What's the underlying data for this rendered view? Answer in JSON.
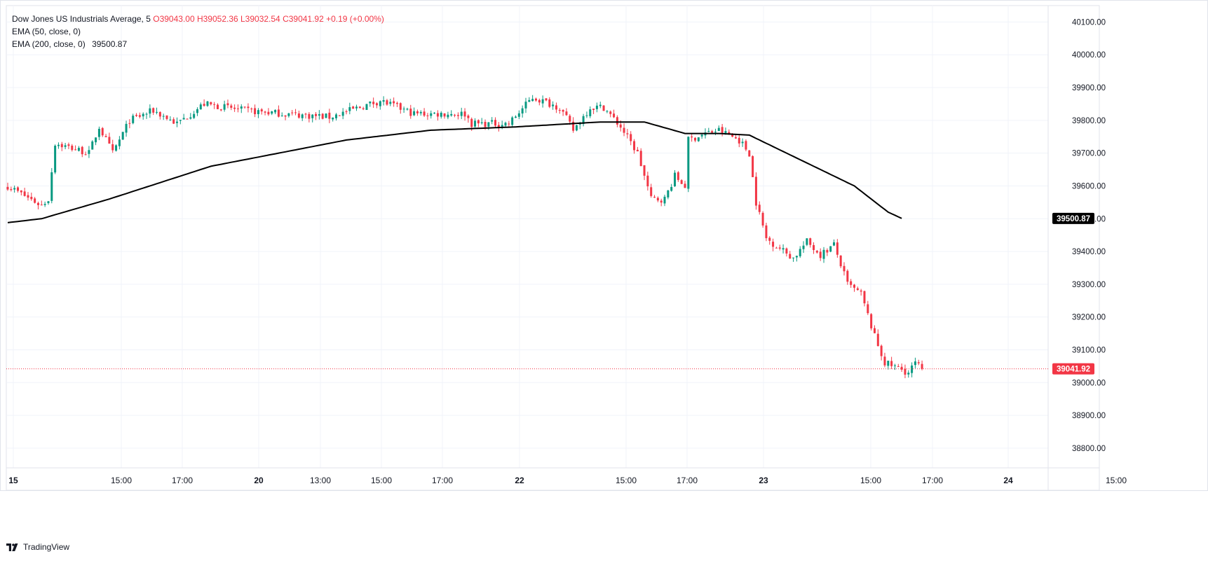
{
  "header": {
    "symbol": "Dow Jones US Industrials Average, 5",
    "ohlc": "O39043.00 H39052.36 L39032.54 C39041.92 +0.19 (+0.00%)",
    "ema50_label": "EMA (50, close, 0)",
    "ema200_label": "EMA (200, close, 0)",
    "ema200_value": "39500.87"
  },
  "brand": {
    "name": "TradingView",
    "icon": "tradingview-logo-icon"
  },
  "colors": {
    "up": "#089981",
    "down": "#f23645",
    "ema": "#000000",
    "grid": "#f0f3fa",
    "price_tag": "#f23645",
    "ema_tag": "#000000",
    "text": "#131722"
  },
  "chart_data": {
    "type": "candlestick",
    "timeframe": "5",
    "y_axis": {
      "ticks": [
        "40100.00",
        "40000.00",
        "39900.00",
        "39800.00",
        "39700.00",
        "39600.00",
        "39500.00",
        "39400.00",
        "39300.00",
        "39200.00",
        "39100.00",
        "39000.00",
        "38900.00",
        "38800.00"
      ],
      "range": [
        38740,
        40150
      ]
    },
    "x_axis": {
      "ticks": [
        "15",
        "15:00",
        "17:00",
        "20",
        "13:00",
        "15:00",
        "17:00",
        "22",
        "15:00",
        "17:00",
        "23",
        "15:00",
        "17:00",
        "24",
        "15:00"
      ],
      "bold_ticks": [
        "15",
        "20",
        "22",
        "23",
        "24"
      ]
    },
    "last_price": {
      "value": 39041.92,
      "label": "39041.92"
    },
    "ema200_last": {
      "value": 39500.87,
      "label": "39500.87"
    },
    "path_waypoints": [
      {
        "bar": 0,
        "price": 39600
      },
      {
        "bar": 10,
        "price": 39540
      },
      {
        "bar": 12,
        "price": 39560
      },
      {
        "bar": 14,
        "price": 39730
      },
      {
        "bar": 24,
        "price": 39700
      },
      {
        "bar": 27,
        "price": 39780
      },
      {
        "bar": 31,
        "price": 39700
      },
      {
        "bar": 36,
        "price": 39800
      },
      {
        "bar": 43,
        "price": 39830
      },
      {
        "bar": 50,
        "price": 39790
      },
      {
        "bar": 58,
        "price": 39850
      },
      {
        "bar": 70,
        "price": 39830
      },
      {
        "bar": 82,
        "price": 39820
      },
      {
        "bar": 95,
        "price": 39810
      },
      {
        "bar": 110,
        "price": 39860
      },
      {
        "bar": 120,
        "price": 39820
      },
      {
        "bar": 135,
        "price": 39820
      },
      {
        "bar": 137,
        "price": 39790
      },
      {
        "bar": 148,
        "price": 39790
      },
      {
        "bar": 155,
        "price": 39870
      },
      {
        "bar": 163,
        "price": 39840
      },
      {
        "bar": 167,
        "price": 39770
      },
      {
        "bar": 172,
        "price": 39840
      },
      {
        "bar": 176,
        "price": 39840
      },
      {
        "bar": 181,
        "price": 39780
      },
      {
        "bar": 186,
        "price": 39700
      },
      {
        "bar": 190,
        "price": 39560
      },
      {
        "bar": 194,
        "price": 39560
      },
      {
        "bar": 197,
        "price": 39630
      },
      {
        "bar": 200,
        "price": 39600
      },
      {
        "bar": 201,
        "price": 39740
      },
      {
        "bar": 206,
        "price": 39760
      },
      {
        "bar": 210,
        "price": 39770
      },
      {
        "bar": 216,
        "price": 39740
      },
      {
        "bar": 219,
        "price": 39700
      },
      {
        "bar": 221,
        "price": 39550
      },
      {
        "bar": 224,
        "price": 39440
      },
      {
        "bar": 232,
        "price": 39380
      },
      {
        "bar": 236,
        "price": 39430
      },
      {
        "bar": 240,
        "price": 39390
      },
      {
        "bar": 244,
        "price": 39420
      },
      {
        "bar": 248,
        "price": 39300
      },
      {
        "bar": 252,
        "price": 39270
      },
      {
        "bar": 256,
        "price": 39140
      },
      {
        "bar": 259,
        "price": 39060
      },
      {
        "bar": 264,
        "price": 39040
      },
      {
        "bar": 266,
        "price": 39030
      },
      {
        "bar": 268,
        "price": 39060
      },
      {
        "bar": 270,
        "price": 39042
      }
    ],
    "ema200_waypoints": [
      {
        "bar": 0,
        "price": 39488
      },
      {
        "bar": 10,
        "price": 39500
      },
      {
        "bar": 20,
        "price": 39530
      },
      {
        "bar": 30,
        "price": 39560
      },
      {
        "bar": 45,
        "price": 39610
      },
      {
        "bar": 60,
        "price": 39660
      },
      {
        "bar": 80,
        "price": 39700
      },
      {
        "bar": 100,
        "price": 39740
      },
      {
        "bar": 125,
        "price": 39770
      },
      {
        "bar": 150,
        "price": 39780
      },
      {
        "bar": 175,
        "price": 39795
      },
      {
        "bar": 188,
        "price": 39795
      },
      {
        "bar": 200,
        "price": 39760
      },
      {
        "bar": 210,
        "price": 39760
      },
      {
        "bar": 219,
        "price": 39755
      },
      {
        "bar": 230,
        "price": 39700
      },
      {
        "bar": 240,
        "price": 39650
      },
      {
        "bar": 250,
        "price": 39600
      },
      {
        "bar": 260,
        "price": 39520
      },
      {
        "bar": 264,
        "price": 39501
      }
    ]
  }
}
